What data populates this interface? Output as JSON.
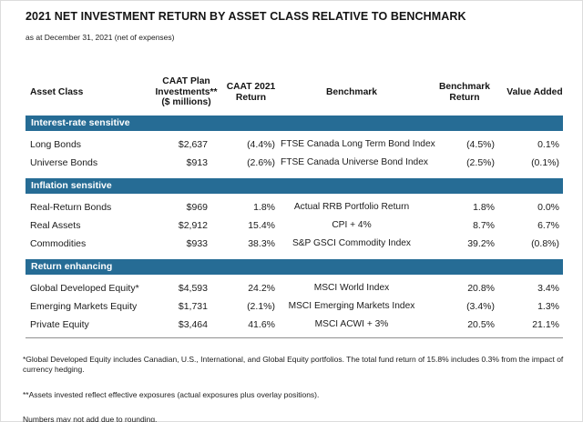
{
  "page": {
    "title": "2021 NET INVESTMENT RETURN BY ASSET CLASS RELATIVE TO BENCHMARK",
    "subtitle": "as at December 31, 2021 (net of expenses)"
  },
  "colors": {
    "band": "#266C95",
    "band_text": "#ffffff",
    "text": "#1b1b1b",
    "rule": "#8f8f8f"
  },
  "table": {
    "headers": {
      "asset_class": "Asset Class",
      "investments": "CAAT Plan\nInvestments**\n($ millions)",
      "caat_return": "CAAT 2021\nReturn",
      "benchmark": "Benchmark",
      "benchmark_return": "Benchmark\nReturn",
      "value_added": "Value Added"
    },
    "sections": [
      {
        "label": "Interest-rate sensitive",
        "rows": [
          {
            "asset": "Long Bonds",
            "invested": "$2,637",
            "return": "(4.4%)",
            "benchmark": "FTSE Canada Long Term Bond Index",
            "benchmark_return": "(4.5%)",
            "value_added": "0.1%"
          },
          {
            "asset": "Universe Bonds",
            "invested": "$913",
            "return": "(2.6%)",
            "benchmark": "FTSE Canada Universe Bond Index",
            "benchmark_return": "(2.5%)",
            "value_added": "(0.1%)"
          }
        ]
      },
      {
        "label": "Inflation sensitive",
        "rows": [
          {
            "asset": "Real-Return Bonds",
            "invested": "$969",
            "return": "1.8%",
            "benchmark": "Actual RRB Portfolio Return",
            "benchmark_return": "1.8%",
            "value_added": "0.0%"
          },
          {
            "asset": "Real Assets",
            "invested": "$2,912",
            "return": "15.4%",
            "benchmark": "CPI + 4%",
            "benchmark_return": "8.7%",
            "value_added": "6.7%"
          },
          {
            "asset": "Commodities",
            "invested": "$933",
            "return": "38.3%",
            "benchmark": "S&P GSCI Commodity Index",
            "benchmark_return": "39.2%",
            "value_added": "(0.8%)"
          }
        ]
      },
      {
        "label": "Return enhancing",
        "rows": [
          {
            "asset": "Global Developed Equity*",
            "invested": "$4,593",
            "return": "24.2%",
            "benchmark": "MSCI World Index",
            "benchmark_return": "20.8%",
            "value_added": "3.4%"
          },
          {
            "asset": "Emerging Markets Equity",
            "invested": "$1,731",
            "return": "(2.1%)",
            "benchmark": "MSCI Emerging Markets Index",
            "benchmark_return": "(3.4%)",
            "value_added": "1.3%"
          },
          {
            "asset": "Private Equity",
            "invested": "$3,464",
            "return": "41.6%",
            "benchmark": "MSCI ACWI + 3%",
            "benchmark_return": "20.5%",
            "value_added": "21.1%"
          }
        ]
      }
    ]
  },
  "footnotes": [
    "*Global Developed Equity includes Canadian, U.S., International, and Global Equity portfolios. The total fund return of 15.8% includes 0.3% from the impact of currency hedging.",
    "**Assets invested reflect effective exposures (actual exposures plus overlay positions).",
    "Numbers may not add due to rounding."
  ]
}
